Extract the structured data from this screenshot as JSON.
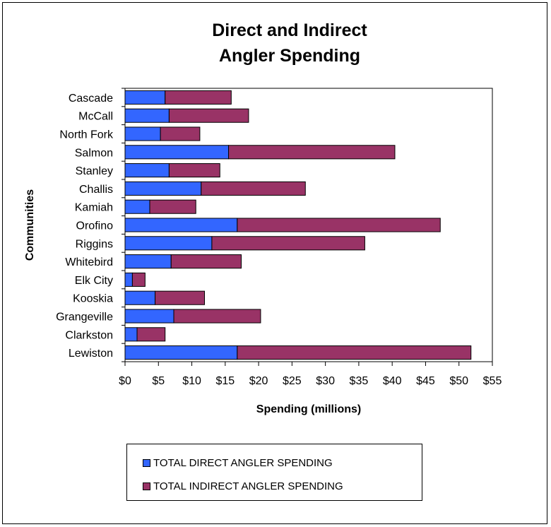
{
  "chart_data": {
    "type": "bar",
    "orientation": "horizontal",
    "stacked": true,
    "title": [
      "Direct and Indirect",
      "Angler Spending"
    ],
    "xlabel": "Spending (millions)",
    "ylabel": "Communities",
    "xlim": [
      0,
      55
    ],
    "x_ticks": [
      "$0",
      "$5",
      "$10",
      "$15",
      "$20",
      "$25",
      "$30",
      "$35",
      "$40",
      "$45",
      "$50",
      "$55"
    ],
    "x_tick_values": [
      0,
      5,
      10,
      15,
      20,
      25,
      30,
      35,
      40,
      45,
      50,
      55
    ],
    "grid": false,
    "legend_position": "bottom",
    "categories": [
      "Cascade",
      "McCall",
      "North Fork",
      "Salmon",
      "Stanley",
      "Challis",
      "Kamiah",
      "Orofino",
      "Riggins",
      "Whitebird",
      "Elk City",
      "Kooskia",
      "Grangeville",
      "Clarkston",
      "Lewiston"
    ],
    "series": [
      {
        "name": "TOTAL DIRECT  ANGLER SPENDING",
        "color": "#3366ff",
        "values": [
          6.0,
          6.6,
          5.3,
          15.5,
          6.6,
          11.4,
          3.7,
          16.8,
          13.0,
          6.9,
          1.1,
          4.5,
          7.3,
          1.8,
          16.8
        ]
      },
      {
        "name": "TOTAL INDIRECT  ANGLER SPENDING",
        "color": "#993366",
        "values": [
          9.9,
          11.9,
          5.9,
          24.9,
          7.6,
          15.6,
          6.9,
          30.4,
          22.9,
          10.5,
          1.9,
          7.4,
          13.0,
          4.2,
          35.0
        ]
      }
    ]
  }
}
